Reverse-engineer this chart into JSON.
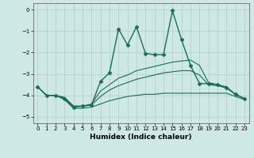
{
  "xlabel": "Humidex (Indice chaleur)",
  "xlim": [
    -0.5,
    23.5
  ],
  "ylim": [
    -5.3,
    0.3
  ],
  "yticks": [
    0,
    -1,
    -2,
    -3,
    -4,
    -5
  ],
  "xticks": [
    0,
    1,
    2,
    3,
    4,
    5,
    6,
    7,
    8,
    9,
    10,
    11,
    12,
    13,
    14,
    15,
    16,
    17,
    18,
    19,
    20,
    21,
    22,
    23
  ],
  "bg_color": "#cde8e5",
  "line_color": "#1a6b5a",
  "grid_color": "#aecfcc",
  "series": [
    {
      "x": [
        0,
        1,
        2,
        3,
        4,
        5,
        6,
        7,
        8,
        9,
        10,
        11,
        12,
        13,
        14,
        15,
        16,
        17,
        18,
        19,
        20,
        21,
        22,
        23
      ],
      "y": [
        -3.6,
        -4.0,
        -4.0,
        -4.15,
        -4.55,
        -4.5,
        -4.45,
        -3.35,
        -2.95,
        -0.9,
        -1.65,
        -0.8,
        -2.05,
        -2.1,
        -2.1,
        -0.05,
        -1.4,
        -2.6,
        -3.45,
        -3.45,
        -3.5,
        -3.65,
        -3.95,
        -4.15
      ],
      "marker": "D",
      "markersize": 2.5,
      "linewidth": 1.0,
      "has_marker": true
    },
    {
      "x": [
        0,
        1,
        2,
        3,
        4,
        5,
        6,
        7,
        8,
        9,
        10,
        11,
        12,
        13,
        14,
        15,
        16,
        17,
        18,
        19,
        20,
        21,
        22,
        23
      ],
      "y": [
        -3.6,
        -4.0,
        -4.0,
        -4.1,
        -4.5,
        -4.5,
        -4.4,
        -3.8,
        -3.5,
        -3.2,
        -3.05,
        -2.85,
        -2.75,
        -2.65,
        -2.55,
        -2.45,
        -2.4,
        -2.35,
        -2.6,
        -3.4,
        -3.5,
        -3.6,
        -3.95,
        -4.15
      ],
      "marker": null,
      "markersize": 0,
      "linewidth": 0.8,
      "has_marker": false
    },
    {
      "x": [
        0,
        1,
        2,
        3,
        4,
        5,
        6,
        7,
        8,
        9,
        10,
        11,
        12,
        13,
        14,
        15,
        16,
        17,
        18,
        19,
        20,
        21,
        22,
        23
      ],
      "y": [
        -3.6,
        -4.0,
        -4.0,
        -4.1,
        -4.5,
        -4.5,
        -4.45,
        -4.05,
        -3.75,
        -3.55,
        -3.4,
        -3.25,
        -3.15,
        -3.05,
        -2.95,
        -2.9,
        -2.85,
        -2.85,
        -3.05,
        -3.5,
        -3.55,
        -3.65,
        -3.95,
        -4.15
      ],
      "marker": null,
      "markersize": 0,
      "linewidth": 0.8,
      "has_marker": false
    },
    {
      "x": [
        0,
        1,
        2,
        3,
        4,
        5,
        6,
        7,
        8,
        9,
        10,
        11,
        12,
        13,
        14,
        15,
        16,
        17,
        18,
        19,
        20,
        21,
        22,
        23
      ],
      "y": [
        -3.6,
        -4.0,
        -4.0,
        -4.2,
        -4.6,
        -4.6,
        -4.55,
        -4.4,
        -4.25,
        -4.15,
        -4.05,
        -4.0,
        -3.95,
        -3.95,
        -3.9,
        -3.9,
        -3.9,
        -3.9,
        -3.9,
        -3.9,
        -3.9,
        -3.9,
        -4.05,
        -4.2
      ],
      "marker": null,
      "markersize": 0,
      "linewidth": 0.8,
      "has_marker": false
    }
  ]
}
